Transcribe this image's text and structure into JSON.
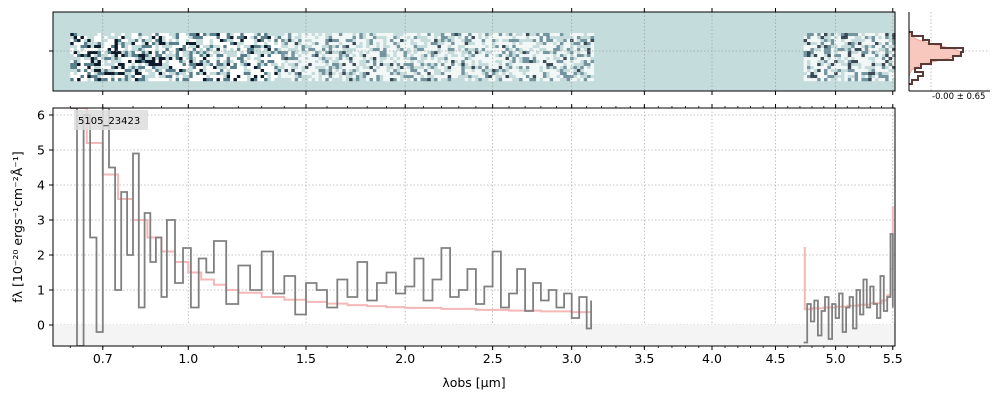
{
  "chart_data": [
    {
      "type": "heatmap",
      "panel": "2D spectrum",
      "colors": {
        "background": "#c5dcdc",
        "dark": "#0d1b2a",
        "light": "#ffffff",
        "mid": "#5a7f8c"
      },
      "coverage_um": [
        [
          0.6,
          3.13
        ],
        [
          4.73,
          5.5
        ]
      ]
    },
    {
      "type": "line",
      "panel": "1D spectrum",
      "label": "5105_23423",
      "xlabel": "λobs [μm]",
      "ylabel": "fλ [10⁻²⁰ ergs⁻¹cm⁻²Å⁻¹]",
      "xscale": "sqrt",
      "xlim": [
        0.55,
        5.52
      ],
      "ylim": [
        -0.6,
        6.2
      ],
      "xticks": [
        "0.7",
        "1.0",
        "1.5",
        "2.0",
        "2.5",
        "3.0",
        "3.5",
        "4.0",
        "4.5",
        "5.0",
        "5.5"
      ],
      "yticks": [
        "0",
        "1",
        "2",
        "3",
        "4",
        "5",
        "6"
      ],
      "grid": true,
      "series": [
        {
          "role": "data",
          "color": "#808080",
          "x": [
            0.6,
            0.62,
            0.64,
            0.66,
            0.68,
            0.7,
            0.72,
            0.74,
            0.76,
            0.78,
            0.8,
            0.82,
            0.84,
            0.86,
            0.88,
            0.9,
            0.92,
            0.95,
            0.98,
            1.01,
            1.04,
            1.07,
            1.1,
            1.15,
            1.2,
            1.25,
            1.3,
            1.35,
            1.4,
            1.45,
            1.5,
            1.55,
            1.6,
            1.65,
            1.7,
            1.75,
            1.8,
            1.85,
            1.9,
            1.95,
            2.0,
            2.05,
            2.1,
            2.15,
            2.2,
            2.25,
            2.3,
            2.35,
            2.4,
            2.45,
            2.5,
            2.55,
            2.6,
            2.65,
            2.7,
            2.75,
            2.8,
            2.85,
            2.9,
            2.95,
            3.0,
            3.05,
            3.1,
            3.13,
            4.73,
            4.76,
            4.79,
            4.82,
            4.85,
            4.88,
            4.91,
            4.94,
            4.97,
            5.0,
            5.03,
            5.06,
            5.09,
            5.12,
            5.15,
            5.18,
            5.21,
            5.24,
            5.27,
            5.3,
            5.33,
            5.36,
            5.39,
            5.42,
            5.45,
            5.48,
            5.5
          ],
          "y": [
            6.2,
            -0.6,
            6.0,
            2.5,
            -0.2,
            6.2,
            4.5,
            1.0,
            3.8,
            2.0,
            4.9,
            0.5,
            3.2,
            1.8,
            2.5,
            0.8,
            3.0,
            1.2,
            2.2,
            0.5,
            1.9,
            1.5,
            2.4,
            0.6,
            1.7,
            1.0,
            2.1,
            0.9,
            1.4,
            0.3,
            1.2,
            1.0,
            0.5,
            1.3,
            0.8,
            1.8,
            0.7,
            1.2,
            1.5,
            0.9,
            1.1,
            1.9,
            0.7,
            1.3,
            2.2,
            0.8,
            1.0,
            1.6,
            0.6,
            1.1,
            2.1,
            0.5,
            0.9,
            1.6,
            0.4,
            1.2,
            0.7,
            1.0,
            0.5,
            0.9,
            0.2,
            0.8,
            -0.1,
            0.7,
            -0.5,
            0.6,
            0.1,
            0.7,
            -0.3,
            0.4,
            0.8,
            -0.4,
            0.6,
            0.2,
            0.9,
            -0.2,
            0.5,
            0.8,
            -0.1,
            1.0,
            0.3,
            1.3,
            0.5,
            1.1,
            0.6,
            0.2,
            1.4,
            0.4,
            0.8,
            2.6,
            0.5
          ]
        },
        {
          "role": "model",
          "color": "#f5b8b8",
          "x": [
            0.6,
            0.65,
            0.7,
            0.75,
            0.8,
            0.85,
            0.9,
            0.95,
            1.0,
            1.05,
            1.1,
            1.15,
            1.2,
            1.3,
            1.4,
            1.5,
            1.6,
            1.7,
            1.8,
            1.9,
            2.0,
            2.2,
            2.4,
            2.6,
            2.8,
            3.0,
            3.13,
            4.73,
            4.74,
            4.8,
            4.9,
            5.0,
            5.1,
            5.2,
            5.3,
            5.4,
            5.45,
            5.48,
            5.5
          ],
          "y": [
            6.2,
            5.2,
            4.3,
            3.6,
            3.0,
            2.5,
            2.1,
            1.8,
            1.5,
            1.3,
            1.15,
            1.0,
            0.92,
            0.8,
            0.72,
            0.66,
            0.61,
            0.57,
            0.54,
            0.51,
            0.49,
            0.46,
            0.43,
            0.41,
            0.39,
            0.37,
            0.36,
            2.2,
            0.45,
            0.48,
            0.5,
            0.52,
            0.55,
            0.58,
            0.62,
            0.7,
            0.85,
            1.6,
            3.4
          ]
        }
      ]
    },
    {
      "type": "bar",
      "panel": "residual histogram",
      "annotation": "-0.00 ± 0.65",
      "colors": {
        "hist": "#5a3a35",
        "gauss": "#f8c7bd"
      }
    }
  ]
}
